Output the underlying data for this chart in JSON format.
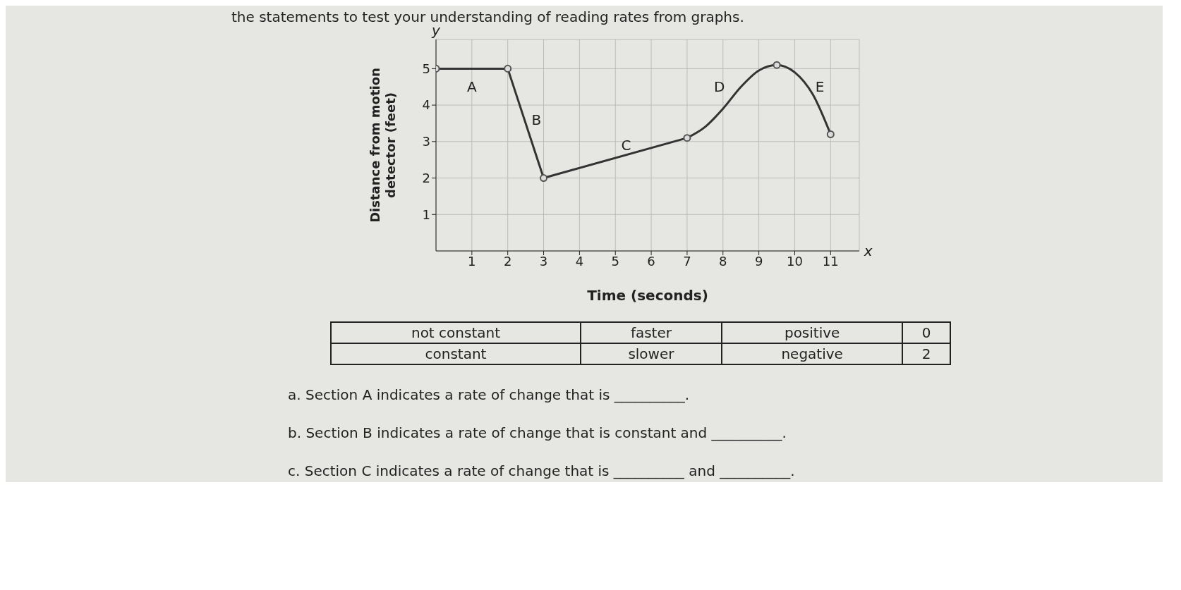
{
  "chart_data": {
    "type": "line",
    "xlabel": "Time (seconds)",
    "ylabel": "Distance from motion detector (feet)",
    "series": [
      {
        "color": "#333333",
        "x": [
          0,
          2,
          3,
          7
        ],
        "values": [
          5,
          5,
          2,
          3.1
        ],
        "marker": "none",
        "line_style": "solid"
      },
      {
        "color": "#333333",
        "x": [
          7,
          7.5,
          8,
          8.5,
          9,
          9.5,
          10,
          10.5,
          11
        ],
        "values": [
          3.1,
          3.4,
          3.9,
          4.5,
          4.95,
          5.1,
          4.9,
          4.3,
          3.2
        ],
        "marker": "none"
      },
      {
        "type": "scatter",
        "color": "#555555",
        "x": [
          0,
          2,
          3,
          7,
          9.5,
          11
        ],
        "values": [
          5,
          5,
          2,
          3.1,
          5.1,
          3.2
        ],
        "marker": "circle"
      }
    ],
    "xlim": [
      0,
      11.8
    ],
    "ylim": [
      0,
      5.8
    ],
    "xticks": [
      1,
      2,
      3,
      4,
      5,
      6,
      7,
      8,
      9,
      10,
      11
    ],
    "yticks": [
      1,
      2,
      3,
      4,
      5
    ],
    "grid": true,
    "annotations": [
      "the statements to test your understanding of reading rates from graphs.",
      "not constant",
      "faster",
      "positive",
      "0",
      "constant",
      "slower",
      "negative",
      "2",
      "a. Section A indicates a rate of change that is __________.",
      "b. Section B indicates a rate of change that is constant and __________.",
      "c. Section C indicates a rate of change that is __________ and __________.",
      "A",
      "B",
      "C",
      "D",
      "E",
      "y",
      "x"
    ]
  }
}
